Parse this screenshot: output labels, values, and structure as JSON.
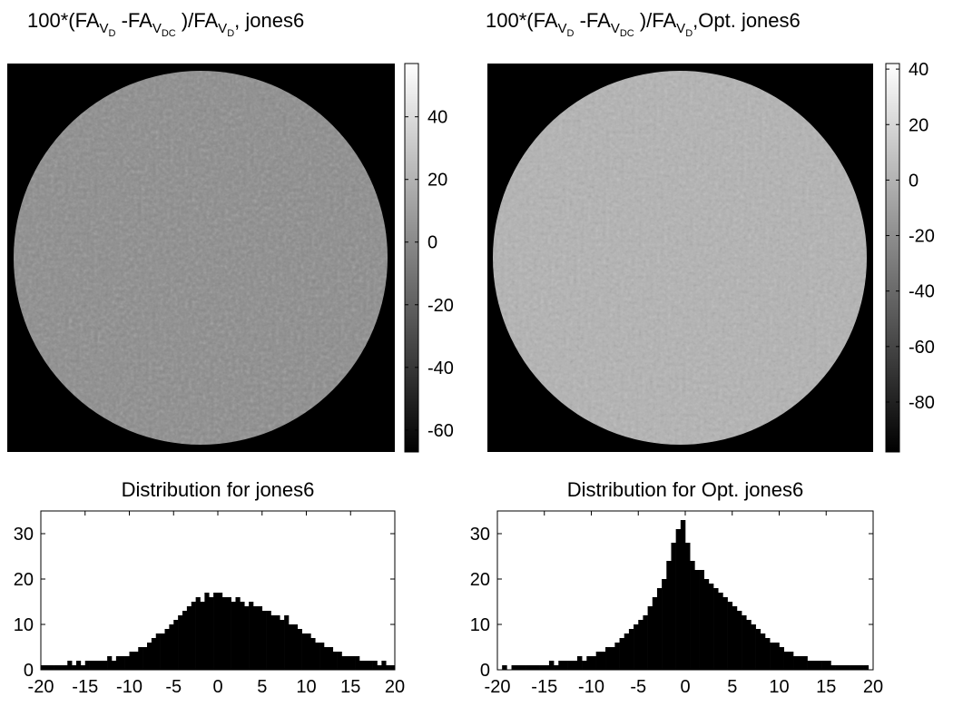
{
  "chart_data": [
    {
      "type": "heatmap",
      "title": [
        "100*(FA",
        "V",
        "D",
        " -FA",
        "V",
        "DC",
        " )/FA",
        "V",
        "D",
        ", jones6"
      ],
      "clim": [
        -67,
        57
      ],
      "cticks": [
        40,
        20,
        0,
        -20,
        -40,
        -60
      ]
    },
    {
      "type": "heatmap",
      "title": [
        "100*(FA",
        "V",
        "D",
        " -FA",
        "V",
        "DC",
        " )/FA",
        "V",
        "D",
        ",Opt. jones6"
      ],
      "clim": [
        -98,
        42
      ],
      "cticks": [
        40,
        20,
        0,
        -20,
        -40,
        -60,
        -80
      ]
    },
    {
      "type": "histogram",
      "title": "Distribution for jones6",
      "bins": [
        -20,
        -19.5,
        -19,
        -18.5,
        -18,
        -17.5,
        -17,
        -16.5,
        -16,
        -15.5,
        -15,
        -14.5,
        -14,
        -13.5,
        -13,
        -12.5,
        -12,
        -11.5,
        -11,
        -10.5,
        -10,
        -9.5,
        -9,
        -8.5,
        -8,
        -7.5,
        -7,
        -6.5,
        -6,
        -5.5,
        -5,
        -4.5,
        -4,
        -3.5,
        -3,
        -2.5,
        -2,
        -1.5,
        -1,
        -0.5,
        0,
        0.5,
        1,
        1.5,
        2,
        2.5,
        3,
        3.5,
        4,
        4.5,
        5,
        5.5,
        6,
        6.5,
        7,
        7.5,
        8,
        8.5,
        9,
        9.5,
        10,
        10.5,
        11,
        11.5,
        12,
        12.5,
        13,
        13.5,
        14,
        14.5,
        15,
        15.5,
        16,
        16.5,
        17,
        17.5,
        18,
        18.5,
        19,
        19.5,
        20
      ],
      "counts": [
        1,
        1,
        1,
        1,
        1,
        1,
        2,
        1,
        2,
        1,
        2,
        2,
        2,
        2,
        2,
        3,
        2,
        3,
        3,
        3,
        4,
        4,
        5,
        5,
        6,
        7,
        8,
        8,
        9,
        10,
        11,
        12,
        13,
        14,
        15,
        16,
        15,
        17,
        16,
        17,
        17,
        16,
        16,
        15,
        16,
        15,
        14,
        15,
        14,
        14,
        13,
        13,
        12,
        12,
        11,
        12,
        10,
        10,
        9,
        8,
        8,
        7,
        6,
        6,
        5,
        5,
        4,
        4,
        3,
        3,
        3,
        3,
        2,
        2,
        2,
        2,
        1,
        2,
        1,
        1
      ],
      "color": "#000000",
      "xlim": [
        -20,
        20
      ],
      "xticks": [
        -20,
        -15,
        -10,
        -5,
        0,
        5,
        10,
        15,
        20
      ],
      "ylim": [
        0,
        35
      ],
      "yticks": [
        0,
        10,
        20,
        30
      ]
    },
    {
      "type": "histogram",
      "title": "Distribution for Opt. jones6",
      "bins": [
        -20,
        -19.5,
        -19,
        -18.5,
        -18,
        -17.5,
        -17,
        -16.5,
        -16,
        -15.5,
        -15,
        -14.5,
        -14,
        -13.5,
        -13,
        -12.5,
        -12,
        -11.5,
        -11,
        -10.5,
        -10,
        -9.5,
        -9,
        -8.5,
        -8,
        -7.5,
        -7,
        -6.5,
        -6,
        -5.5,
        -5,
        -4.5,
        -4,
        -3.5,
        -3,
        -2.5,
        -2,
        -1.5,
        -1,
        -0.5,
        0,
        0.5,
        1,
        1.5,
        2,
        2.5,
        3,
        3.5,
        4,
        4.5,
        5,
        5.5,
        6,
        6.5,
        7,
        7.5,
        8,
        8.5,
        9,
        9.5,
        10,
        10.5,
        11,
        11.5,
        12,
        12.5,
        13,
        13.5,
        14,
        14.5,
        15,
        15.5,
        16,
        16.5,
        17,
        17.5,
        18,
        18.5,
        19,
        19.5,
        20
      ],
      "counts": [
        0,
        1,
        0,
        1,
        1,
        1,
        1,
        1,
        1,
        1,
        1,
        2,
        1,
        2,
        2,
        2,
        2,
        3,
        2,
        3,
        3,
        4,
        4,
        5,
        5,
        6,
        7,
        8,
        9,
        10,
        11,
        12,
        14,
        16,
        18,
        20,
        24,
        28,
        31,
        33,
        28,
        24,
        22,
        22,
        20,
        19,
        18,
        17,
        16,
        15,
        14,
        13,
        12,
        11,
        10,
        9,
        8,
        7,
        6,
        6,
        5,
        4,
        4,
        3,
        3,
        3,
        2,
        2,
        2,
        2,
        2,
        1,
        1,
        1,
        1,
        1,
        1,
        1,
        1,
        0
      ],
      "color": "#000000",
      "xlim": [
        -20,
        20
      ],
      "xticks": [
        -20,
        -15,
        -10,
        -5,
        0,
        5,
        10,
        15,
        20
      ],
      "ylim": [
        0,
        35
      ],
      "yticks": [
        0,
        10,
        20,
        30
      ]
    }
  ]
}
